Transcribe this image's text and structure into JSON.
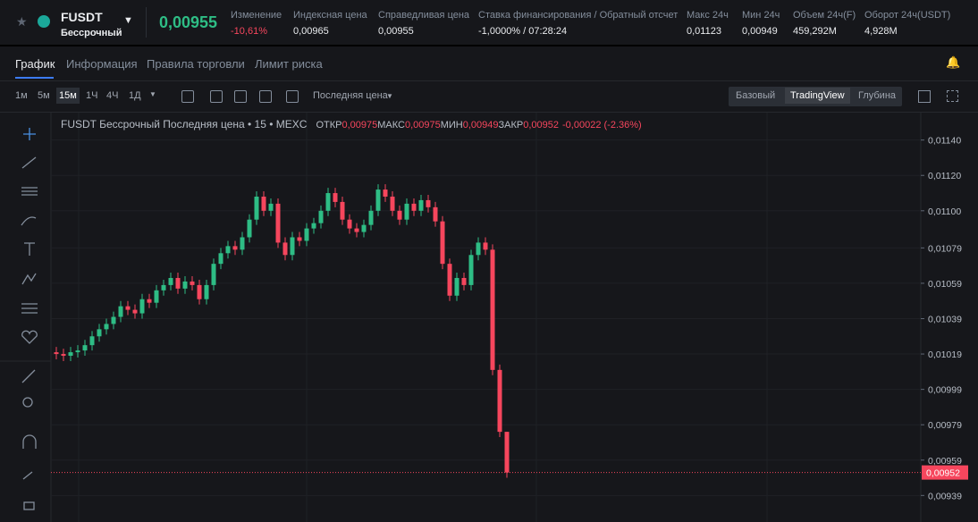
{
  "header": {
    "symbol": "FUSDT",
    "contract": "Бессрочный",
    "price": "0,00955",
    "stats": [
      {
        "label": "Изменение",
        "value": "-10,61%"
      },
      {
        "label": "Индексная цена",
        "value": "0,00965"
      },
      {
        "label": "Справедливая цена",
        "value": "0,00955"
      },
      {
        "label": "Ставка финансирования / Обратный отсчет",
        "value": "-1,0000% / 07:28:24"
      },
      {
        "label": "Макс 24ч",
        "value": "0,01123"
      },
      {
        "label": "Мин 24ч",
        "value": "0,00949"
      },
      {
        "label": "Объем 24ч(F)",
        "value": "459,292M"
      },
      {
        "label": "Оборот 24ч(USDT)",
        "value": "4,928M"
      }
    ]
  },
  "tabs": [
    "График",
    "Информация",
    "Правила торговли",
    "Лимит риска"
  ],
  "toolbar": {
    "intervals": [
      "1м",
      "5м",
      "15м",
      "1Ч",
      "4Ч",
      "1Д"
    ],
    "price_type": "Последняя цена",
    "views": [
      "Базовый",
      "TradingView",
      "Глубина"
    ]
  },
  "chart_data": {
    "type": "candlestick",
    "title": "FUSDT Бессрочный Последняя цена • 15 • MEXC",
    "legend": [
      {
        "label": "ОТКР",
        "value": "0,00975"
      },
      {
        "label": "МАКС",
        "value": "0,00975"
      },
      {
        "label": "МИН",
        "value": "0,00949"
      },
      {
        "label": "ЗАКР",
        "value": "0,00952"
      }
    ],
    "change": "-0,00022 (-2.36%)",
    "up_color": "#2ebd85",
    "down_color": "#f6465d",
    "open": [
      0.0102,
      0.01019,
      0.01018,
      0.0102,
      0.01021,
      0.01024,
      0.01029,
      0.01033,
      0.01036,
      0.0104,
      0.01046,
      0.01044,
      0.01042,
      0.0105,
      0.01048,
      0.01055,
      0.01058,
      0.01062,
      0.01056,
      0.0106,
      0.01058,
      0.0105,
      0.01058,
      0.0107,
      0.01076,
      0.0108,
      0.01078,
      0.01085,
      0.01095,
      0.01108,
      0.011,
      0.01104,
      0.01082,
      0.01075,
      0.01085,
      0.01083,
      0.0109,
      0.01093,
      0.011,
      0.0111,
      0.01105,
      0.01095,
      0.0109,
      0.01088,
      0.01092,
      0.011,
      0.01112,
      0.01108,
      0.011,
      0.01095,
      0.01104,
      0.011,
      0.01106,
      0.01102,
      0.01094,
      0.0107,
      0.01052,
      0.01062,
      0.01058,
      0.01075,
      0.01082,
      0.01078,
      0.0101,
      0.00975
    ],
    "high": [
      0.01023,
      0.01022,
      0.01023,
      0.01024,
      0.01027,
      0.01032,
      0.01036,
      0.01039,
      0.01043,
      0.01049,
      0.01049,
      0.01047,
      0.01053,
      0.01053,
      0.01058,
      0.01061,
      0.01065,
      0.01065,
      0.01063,
      0.01063,
      0.01061,
      0.01061,
      0.01073,
      0.01079,
      0.01083,
      0.01083,
      0.01088,
      0.01098,
      0.01111,
      0.01111,
      0.01107,
      0.01107,
      0.01085,
      0.01088,
      0.01088,
      0.01093,
      0.01096,
      0.01103,
      0.01113,
      0.01113,
      0.01108,
      0.01098,
      0.01093,
      0.01095,
      0.01103,
      0.01115,
      0.01115,
      0.01111,
      0.01103,
      0.01107,
      0.01107,
      0.01109,
      0.01109,
      0.01105,
      0.01097,
      0.01073,
      0.01065,
      0.01065,
      0.01078,
      0.01085,
      0.01085,
      0.01081,
      0.01013,
      0.00975
    ],
    "low": [
      0.01016,
      0.01015,
      0.01015,
      0.01017,
      0.01018,
      0.01021,
      0.01026,
      0.0103,
      0.01033,
      0.01037,
      0.01041,
      0.01039,
      0.01039,
      0.01045,
      0.01045,
      0.01052,
      0.01055,
      0.01053,
      0.01053,
      0.01055,
      0.01047,
      0.01047,
      0.01055,
      0.01067,
      0.01073,
      0.01075,
      0.01075,
      0.01082,
      0.01092,
      0.01097,
      0.01097,
      0.01079,
      0.01072,
      0.01072,
      0.0108,
      0.0108,
      0.01087,
      0.0109,
      0.01097,
      0.01102,
      0.01092,
      0.01087,
      0.01085,
      0.01085,
      0.01089,
      0.01097,
      0.01105,
      0.01097,
      0.01092,
      0.01092,
      0.01097,
      0.01097,
      0.01099,
      0.01091,
      0.01067,
      0.01049,
      0.01049,
      0.01055,
      0.01055,
      0.01072,
      0.01075,
      0.01007,
      0.00972,
      0.00949
    ],
    "close": [
      0.01019,
      0.01018,
      0.0102,
      0.01021,
      0.01024,
      0.01029,
      0.01033,
      0.01036,
      0.0104,
      0.01046,
      0.01044,
      0.01042,
      0.0105,
      0.01048,
      0.01055,
      0.01058,
      0.01062,
      0.01056,
      0.0106,
      0.01058,
      0.0105,
      0.01058,
      0.0107,
      0.01076,
      0.0108,
      0.01078,
      0.01085,
      0.01095,
      0.01108,
      0.011,
      0.01104,
      0.01082,
      0.01075,
      0.01085,
      0.01083,
      0.0109,
      0.01093,
      0.011,
      0.0111,
      0.01105,
      0.01095,
      0.0109,
      0.01088,
      0.01092,
      0.011,
      0.01112,
      0.01108,
      0.011,
      0.01095,
      0.01104,
      0.011,
      0.01106,
      0.01102,
      0.01094,
      0.0107,
      0.01052,
      0.01062,
      0.01058,
      0.01075,
      0.01082,
      0.01078,
      0.0101,
      0.00975,
      0.00952
    ],
    "ylim": [
      0.00924,
      0.01155
    ],
    "yticks": [
      {
        "value": 0.0114,
        "label": "0,01140"
      },
      {
        "value": 0.0112,
        "label": "0,01120"
      },
      {
        "value": 0.011,
        "label": "0,01100"
      },
      {
        "value": 0.01079,
        "label": "0,01079"
      },
      {
        "value": 0.01059,
        "label": "0,01059"
      },
      {
        "value": 0.01039,
        "label": "0,01039"
      },
      {
        "value": 0.01019,
        "label": "0,01019"
      },
      {
        "value": 0.00999,
        "label": "0,00999"
      },
      {
        "value": 0.00979,
        "label": "0,00979"
      },
      {
        "value": 0.00959,
        "label": "0,00959"
      },
      {
        "value": 0.00939,
        "label": "0,00939"
      }
    ],
    "last_price": {
      "value": 0.00952,
      "label": "0,00952"
    },
    "grid": true
  }
}
